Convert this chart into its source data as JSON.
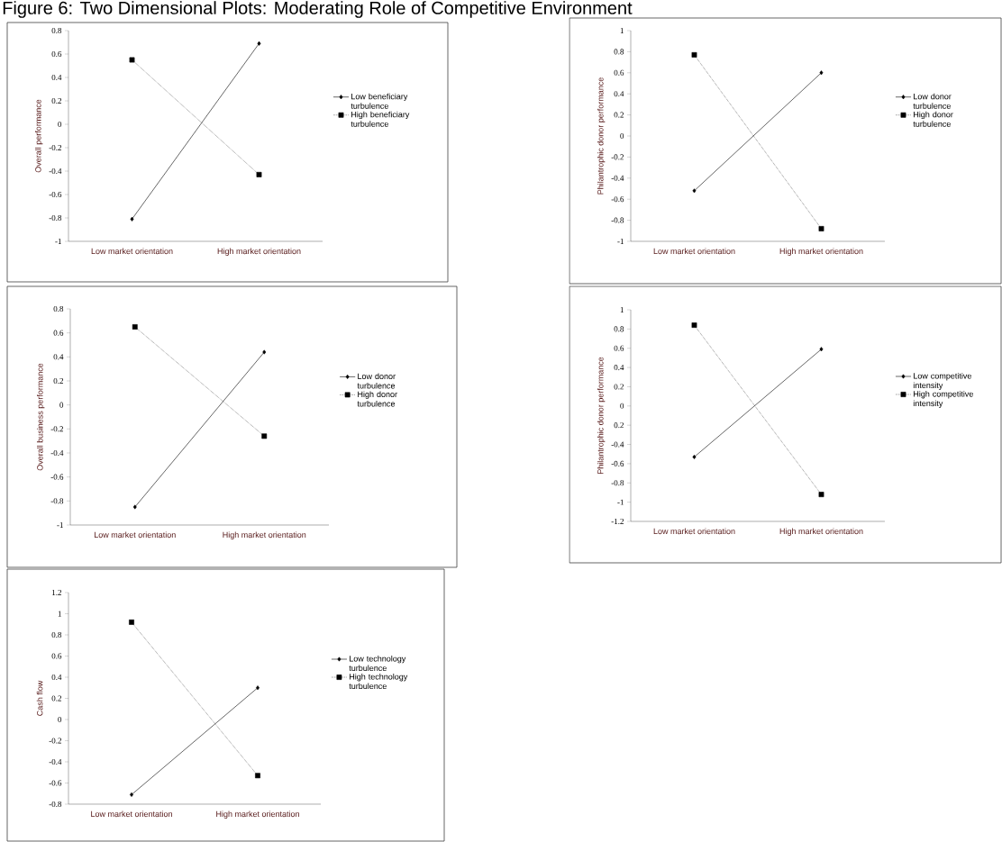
{
  "chart_data": [
    {
      "type": "line",
      "title": "Figure 6: Two Dimensional Plots: Moderating Role of Competitive Environment",
      "ylabel": "Overall performance",
      "categories": [
        "Low market orientation",
        "High market orientation"
      ],
      "ylim": [
        -1,
        0.8
      ],
      "yticks": [
        -1,
        -0.8,
        -0.6,
        -0.4,
        -0.2,
        0,
        0.2,
        0.4,
        0.6,
        0.8
      ],
      "legend": "right",
      "series": [
        {
          "name": "Low beneficiary turbulence",
          "color": "#000000",
          "values": [
            -0.81,
            0.69
          ],
          "marker": "diamond",
          "line_style": "solid"
        },
        {
          "name": "High beneficiary turbulence",
          "color": "#000000",
          "values": [
            0.55,
            -0.43
          ],
          "marker": "square",
          "line_style": "dotted"
        }
      ]
    },
    {
      "type": "line",
      "ylabel": "Philantrophic donor performance",
      "categories": [
        "Low market orientation",
        "High market orientation"
      ],
      "ylim": [
        -1,
        1
      ],
      "yticks": [
        -1,
        -0.8,
        -0.6,
        -0.4,
        -0.2,
        0,
        0.2,
        0.4,
        0.6,
        0.8,
        1
      ],
      "legend": "right",
      "series": [
        {
          "name": "Low donor turbulence",
          "color": "#000000",
          "values": [
            -0.52,
            0.6
          ],
          "marker": "diamond",
          "line_style": "solid"
        },
        {
          "name": "High donor turbulence",
          "color": "#000000",
          "values": [
            0.77,
            -0.88
          ],
          "marker": "square",
          "line_style": "dotted"
        }
      ]
    },
    {
      "type": "line",
      "ylabel": "Overall business performance",
      "categories": [
        "Low market orientation",
        "High market orientation"
      ],
      "ylim": [
        -1,
        0.8
      ],
      "yticks": [
        -1,
        -0.8,
        -0.6,
        -0.4,
        -0.2,
        0,
        0.2,
        0.4,
        0.6,
        0.8
      ],
      "legend": "right",
      "series": [
        {
          "name": "Low donor turbulence",
          "color": "#000000",
          "values": [
            -0.85,
            0.44
          ],
          "marker": "diamond",
          "line_style": "solid"
        },
        {
          "name": "High donor turbulence",
          "color": "#000000",
          "values": [
            0.65,
            -0.26
          ],
          "marker": "square",
          "line_style": "dotted"
        }
      ]
    },
    {
      "type": "line",
      "ylabel": "Philantrophic donor performance",
      "categories": [
        "Low market orientation",
        "High market orientation"
      ],
      "ylim": [
        -1.2,
        1
      ],
      "yticks": [
        -1.2,
        -1,
        -0.8,
        -0.6,
        -0.4,
        {
          "value": -0.2,
          "label": "0.2"
        },
        0,
        0.2,
        0.4,
        0.6,
        0.8,
        1
      ],
      "legend": "right",
      "series": [
        {
          "name": "Low competitive intensity",
          "color": "#000000",
          "values": [
            -0.53,
            0.59
          ],
          "marker": "diamond",
          "line_style": "solid"
        },
        {
          "name": "High competitive intensity",
          "color": "#000000",
          "values": [
            0.84,
            -0.92
          ],
          "marker": "square",
          "line_style": "dotted"
        }
      ]
    },
    {
      "type": "line",
      "ylabel": "Cash flow",
      "categories": [
        "Low market orientation",
        "High market orientation"
      ],
      "ylim": [
        -0.8,
        1.2
      ],
      "yticks": [
        -0.8,
        -0.6,
        -0.4,
        -0.2,
        0,
        0.2,
        0.4,
        0.6,
        0.8,
        1,
        1.2
      ],
      "legend": "right",
      "series": [
        {
          "name": "Low technology turbulence",
          "color": "#000000",
          "values": [
            -0.71,
            0.3
          ],
          "marker": "diamond",
          "line_style": "solid"
        },
        {
          "name": "High technology turbulence",
          "color": "#000000",
          "values": [
            0.92,
            -0.53
          ],
          "marker": "square",
          "line_style": "dotted"
        }
      ]
    }
  ]
}
